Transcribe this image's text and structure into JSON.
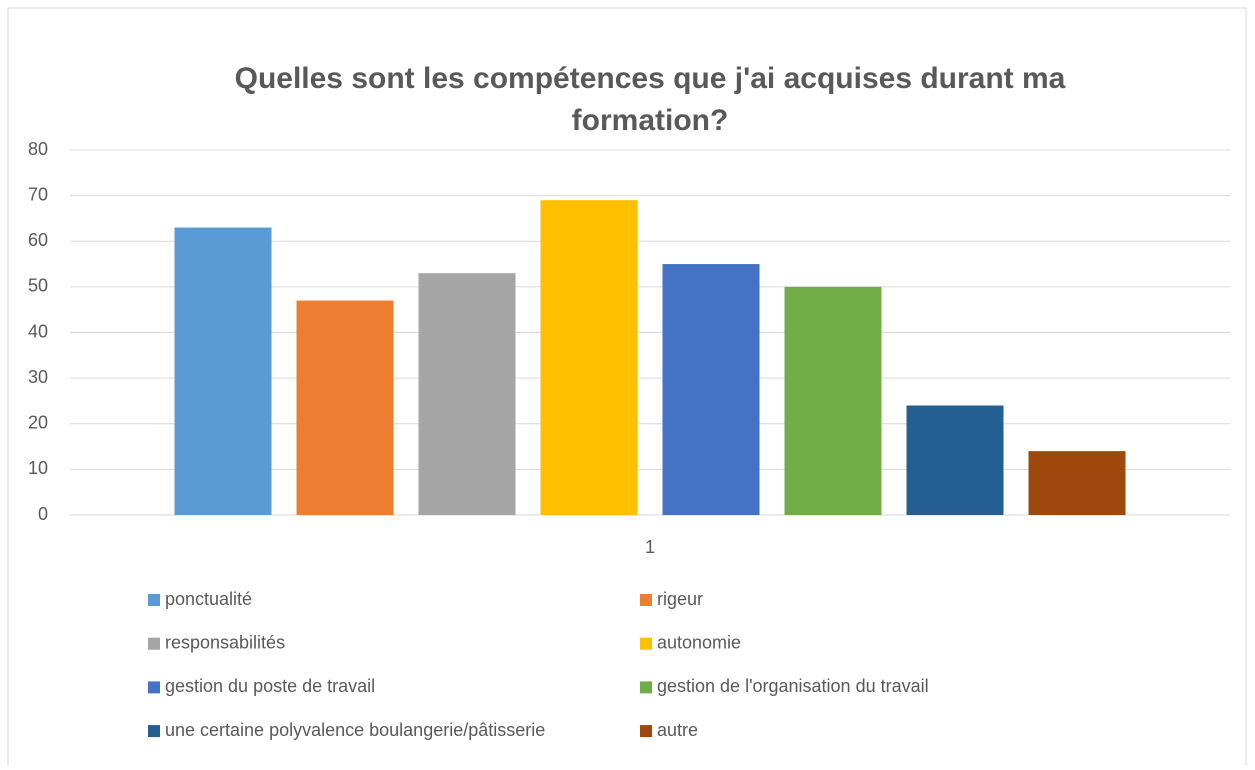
{
  "chart_data": {
    "type": "bar",
    "title": [
      "Quelles sont les compétences que j'ai acquises durant ma",
      "formation?"
    ],
    "categories": [
      "1"
    ],
    "series": [
      {
        "name": "ponctualité",
        "color": "#5b9bd5",
        "values": [
          63
        ]
      },
      {
        "name": "rigeur",
        "color": "#ed7d31",
        "values": [
          47
        ]
      },
      {
        "name": "responsabilités",
        "color": "#a5a5a5",
        "values": [
          53
        ]
      },
      {
        "name": "autonomie",
        "color": "#ffc000",
        "values": [
          69
        ]
      },
      {
        "name": "gestion du poste de travail",
        "color": "#4472c4",
        "values": [
          55
        ]
      },
      {
        "name": "gestion de l'organisation du travail",
        "color": "#70ad47",
        "values": [
          50
        ]
      },
      {
        "name": "une certaine polyvalence boulangerie/pâtisserie",
        "color": "#255e91",
        "values": [
          24
        ]
      },
      {
        "name": "autre",
        "color": "#9e480e",
        "values": [
          14
        ]
      }
    ],
    "ylim": [
      0,
      80
    ],
    "yticks": [
      0,
      10,
      20,
      30,
      40,
      50,
      60,
      70,
      80
    ],
    "grid": true,
    "legend": "bottom"
  }
}
